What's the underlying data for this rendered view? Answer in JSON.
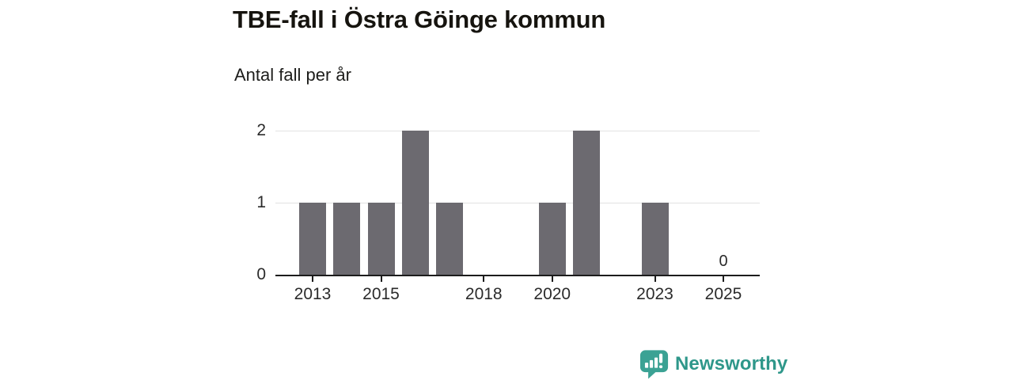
{
  "header": {
    "title": "TBE-fall i Östra Göinge kommun",
    "subtitle": "Antal fall per år"
  },
  "chart_data": {
    "type": "bar",
    "title": "TBE-fall i Östra Göinge kommun",
    "subtitle": "Antal fall per år",
    "xlabel": "",
    "ylabel": "Antal fall per år",
    "categories": [
      2013,
      2014,
      2015,
      2016,
      2017,
      2018,
      2019,
      2020,
      2021,
      2022,
      2023,
      2024,
      2025
    ],
    "values": [
      1,
      1,
      1,
      2,
      1,
      0,
      0,
      1,
      2,
      0,
      1,
      0,
      0
    ],
    "ylim": [
      0,
      2
    ],
    "yticks": [
      0,
      1,
      2
    ],
    "xticks": [
      2013,
      2015,
      2018,
      2020,
      2023,
      2025
    ],
    "annotations": [
      {
        "x": 2025,
        "text": "0"
      }
    ],
    "grid": true,
    "legend": "none",
    "bar_color": "#6c6a70"
  },
  "branding": {
    "wordmark": "Newsworthy",
    "icon": "newsworthy-speech-bubble-bar-chart-icon",
    "icon_color": "#3ba294",
    "text_color": "#2e978a"
  },
  "colors": {
    "bar": "#6c6a70",
    "axis": "#1c1c1c",
    "grid": "#e2e2e2",
    "tick_text": "#2b2b2b",
    "background": "#ffffff"
  }
}
